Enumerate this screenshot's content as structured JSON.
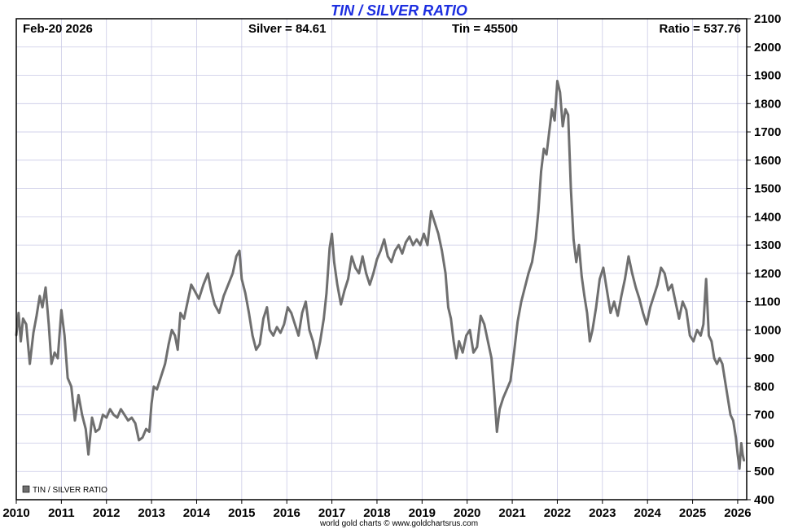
{
  "chart_data": {
    "type": "line",
    "title": "TIN / SILVER RATIO",
    "header": {
      "date": "Feb-20  2026",
      "silver": "Silver = 84.61",
      "tin": "Tin = 45500",
      "ratio": "Ratio = 537.76"
    },
    "xlim": [
      2010,
      2026.2
    ],
    "ylim": [
      400,
      2100
    ],
    "x_ticks": [
      "2010",
      "2011",
      "2012",
      "2013",
      "2014",
      "2015",
      "2016",
      "2017",
      "2018",
      "2019",
      "2020",
      "2021",
      "2022",
      "2023",
      "2024",
      "2025",
      "2026"
    ],
    "y_ticks": [
      "400",
      "500",
      "600",
      "700",
      "800",
      "900",
      "1000",
      "1100",
      "1200",
      "1300",
      "1400",
      "1500",
      "1600",
      "1700",
      "1800",
      "1900",
      "2000",
      "2100"
    ],
    "grid": true,
    "legend_position": "bottom-left",
    "series": [
      {
        "name": "TIN / SILVER RATIO",
        "color": "#6f6f6f",
        "points": [
          [
            2010.0,
            980
          ],
          [
            2010.05,
            1060
          ],
          [
            2010.1,
            960
          ],
          [
            2010.15,
            1040
          ],
          [
            2010.22,
            1020
          ],
          [
            2010.3,
            880
          ],
          [
            2010.38,
            990
          ],
          [
            2010.45,
            1050
          ],
          [
            2010.52,
            1120
          ],
          [
            2010.58,
            1080
          ],
          [
            2010.65,
            1150
          ],
          [
            2010.72,
            1020
          ],
          [
            2010.78,
            880
          ],
          [
            2010.85,
            920
          ],
          [
            2010.92,
            900
          ],
          [
            2011.0,
            1070
          ],
          [
            2011.07,
            980
          ],
          [
            2011.14,
            830
          ],
          [
            2011.22,
            800
          ],
          [
            2011.3,
            680
          ],
          [
            2011.38,
            770
          ],
          [
            2011.46,
            700
          ],
          [
            2011.54,
            650
          ],
          [
            2011.6,
            560
          ],
          [
            2011.68,
            690
          ],
          [
            2011.76,
            640
          ],
          [
            2011.84,
            650
          ],
          [
            2011.92,
            700
          ],
          [
            2012.0,
            690
          ],
          [
            2012.08,
            720
          ],
          [
            2012.16,
            700
          ],
          [
            2012.24,
            690
          ],
          [
            2012.32,
            720
          ],
          [
            2012.4,
            700
          ],
          [
            2012.48,
            680
          ],
          [
            2012.56,
            690
          ],
          [
            2012.64,
            670
          ],
          [
            2012.72,
            610
          ],
          [
            2012.8,
            620
          ],
          [
            2012.88,
            650
          ],
          [
            2012.95,
            640
          ],
          [
            2013.0,
            740
          ],
          [
            2013.05,
            800
          ],
          [
            2013.12,
            790
          ],
          [
            2013.2,
            830
          ],
          [
            2013.3,
            880
          ],
          [
            2013.38,
            950
          ],
          [
            2013.45,
            1000
          ],
          [
            2013.52,
            980
          ],
          [
            2013.58,
            930
          ],
          [
            2013.64,
            1060
          ],
          [
            2013.72,
            1040
          ],
          [
            2013.8,
            1100
          ],
          [
            2013.88,
            1160
          ],
          [
            2013.95,
            1140
          ],
          [
            2014.05,
            1110
          ],
          [
            2014.15,
            1160
          ],
          [
            2014.25,
            1200
          ],
          [
            2014.32,
            1140
          ],
          [
            2014.4,
            1090
          ],
          [
            2014.5,
            1060
          ],
          [
            2014.6,
            1120
          ],
          [
            2014.7,
            1160
          ],
          [
            2014.8,
            1200
          ],
          [
            2014.88,
            1260
          ],
          [
            2014.95,
            1280
          ],
          [
            2015.0,
            1180
          ],
          [
            2015.08,
            1130
          ],
          [
            2015.16,
            1060
          ],
          [
            2015.24,
            980
          ],
          [
            2015.32,
            930
          ],
          [
            2015.4,
            950
          ],
          [
            2015.48,
            1040
          ],
          [
            2015.56,
            1080
          ],
          [
            2015.62,
            1000
          ],
          [
            2015.7,
            980
          ],
          [
            2015.78,
            1010
          ],
          [
            2015.86,
            990
          ],
          [
            2015.94,
            1020
          ],
          [
            2016.02,
            1080
          ],
          [
            2016.1,
            1060
          ],
          [
            2016.18,
            1020
          ],
          [
            2016.26,
            980
          ],
          [
            2016.34,
            1060
          ],
          [
            2016.42,
            1100
          ],
          [
            2016.5,
            1000
          ],
          [
            2016.58,
            960
          ],
          [
            2016.66,
            900
          ],
          [
            2016.74,
            960
          ],
          [
            2016.82,
            1040
          ],
          [
            2016.88,
            1130
          ],
          [
            2016.95,
            1290
          ],
          [
            2017.0,
            1340
          ],
          [
            2017.05,
            1240
          ],
          [
            2017.12,
            1160
          ],
          [
            2017.2,
            1090
          ],
          [
            2017.28,
            1140
          ],
          [
            2017.36,
            1180
          ],
          [
            2017.44,
            1260
          ],
          [
            2017.52,
            1220
          ],
          [
            2017.6,
            1200
          ],
          [
            2017.68,
            1260
          ],
          [
            2017.76,
            1200
          ],
          [
            2017.84,
            1160
          ],
          [
            2017.92,
            1200
          ],
          [
            2018.0,
            1250
          ],
          [
            2018.08,
            1280
          ],
          [
            2018.16,
            1320
          ],
          [
            2018.24,
            1260
          ],
          [
            2018.32,
            1240
          ],
          [
            2018.4,
            1280
          ],
          [
            2018.48,
            1300
          ],
          [
            2018.56,
            1270
          ],
          [
            2018.64,
            1310
          ],
          [
            2018.72,
            1330
          ],
          [
            2018.8,
            1300
          ],
          [
            2018.88,
            1320
          ],
          [
            2018.96,
            1300
          ],
          [
            2019.04,
            1340
          ],
          [
            2019.12,
            1300
          ],
          [
            2019.2,
            1420
          ],
          [
            2019.28,
            1380
          ],
          [
            2019.36,
            1340
          ],
          [
            2019.44,
            1280
          ],
          [
            2019.52,
            1200
          ],
          [
            2019.58,
            1080
          ],
          [
            2019.64,
            1040
          ],
          [
            2019.7,
            960
          ],
          [
            2019.76,
            900
          ],
          [
            2019.82,
            960
          ],
          [
            2019.9,
            920
          ],
          [
            2019.98,
            980
          ],
          [
            2020.06,
            1000
          ],
          [
            2020.14,
            920
          ],
          [
            2020.22,
            940
          ],
          [
            2020.3,
            1050
          ],
          [
            2020.38,
            1020
          ],
          [
            2020.46,
            960
          ],
          [
            2020.54,
            900
          ],
          [
            2020.6,
            780
          ],
          [
            2020.66,
            640
          ],
          [
            2020.72,
            720
          ],
          [
            2020.8,
            760
          ],
          [
            2020.88,
            790
          ],
          [
            2020.96,
            820
          ],
          [
            2021.04,
            920
          ],
          [
            2021.12,
            1030
          ],
          [
            2021.2,
            1100
          ],
          [
            2021.28,
            1150
          ],
          [
            2021.36,
            1200
          ],
          [
            2021.44,
            1240
          ],
          [
            2021.52,
            1320
          ],
          [
            2021.58,
            1420
          ],
          [
            2021.64,
            1560
          ],
          [
            2021.7,
            1640
          ],
          [
            2021.76,
            1620
          ],
          [
            2021.82,
            1700
          ],
          [
            2021.88,
            1780
          ],
          [
            2021.94,
            1740
          ],
          [
            2022.0,
            1880
          ],
          [
            2022.06,
            1840
          ],
          [
            2022.12,
            1720
          ],
          [
            2022.18,
            1780
          ],
          [
            2022.24,
            1760
          ],
          [
            2022.3,
            1500
          ],
          [
            2022.36,
            1320
          ],
          [
            2022.42,
            1240
          ],
          [
            2022.48,
            1300
          ],
          [
            2022.54,
            1190
          ],
          [
            2022.6,
            1120
          ],
          [
            2022.66,
            1060
          ],
          [
            2022.72,
            960
          ],
          [
            2022.78,
            1000
          ],
          [
            2022.86,
            1080
          ],
          [
            2022.94,
            1180
          ],
          [
            2023.02,
            1220
          ],
          [
            2023.1,
            1140
          ],
          [
            2023.18,
            1060
          ],
          [
            2023.26,
            1100
          ],
          [
            2023.34,
            1050
          ],
          [
            2023.42,
            1120
          ],
          [
            2023.5,
            1180
          ],
          [
            2023.58,
            1260
          ],
          [
            2023.66,
            1200
          ],
          [
            2023.74,
            1150
          ],
          [
            2023.82,
            1110
          ],
          [
            2023.9,
            1060
          ],
          [
            2023.98,
            1020
          ],
          [
            2024.06,
            1080
          ],
          [
            2024.14,
            1120
          ],
          [
            2024.22,
            1160
          ],
          [
            2024.3,
            1220
          ],
          [
            2024.38,
            1200
          ],
          [
            2024.46,
            1140
          ],
          [
            2024.54,
            1160
          ],
          [
            2024.62,
            1100
          ],
          [
            2024.7,
            1040
          ],
          [
            2024.78,
            1100
          ],
          [
            2024.86,
            1070
          ],
          [
            2024.94,
            980
          ],
          [
            2025.02,
            960
          ],
          [
            2025.1,
            1000
          ],
          [
            2025.18,
            980
          ],
          [
            2025.24,
            1020
          ],
          [
            2025.3,
            1180
          ],
          [
            2025.36,
            980
          ],
          [
            2025.42,
            960
          ],
          [
            2025.48,
            900
          ],
          [
            2025.54,
            880
          ],
          [
            2025.6,
            900
          ],
          [
            2025.66,
            880
          ],
          [
            2025.72,
            820
          ],
          [
            2025.78,
            760
          ],
          [
            2025.84,
            700
          ],
          [
            2025.9,
            680
          ],
          [
            2025.96,
            620
          ],
          [
            2026.0,
            560
          ],
          [
            2026.04,
            510
          ],
          [
            2026.08,
            600
          ],
          [
            2026.11,
            560
          ],
          [
            2026.14,
            538
          ]
        ]
      }
    ],
    "credit": "world gold charts © www.goldchartsrus.com"
  }
}
